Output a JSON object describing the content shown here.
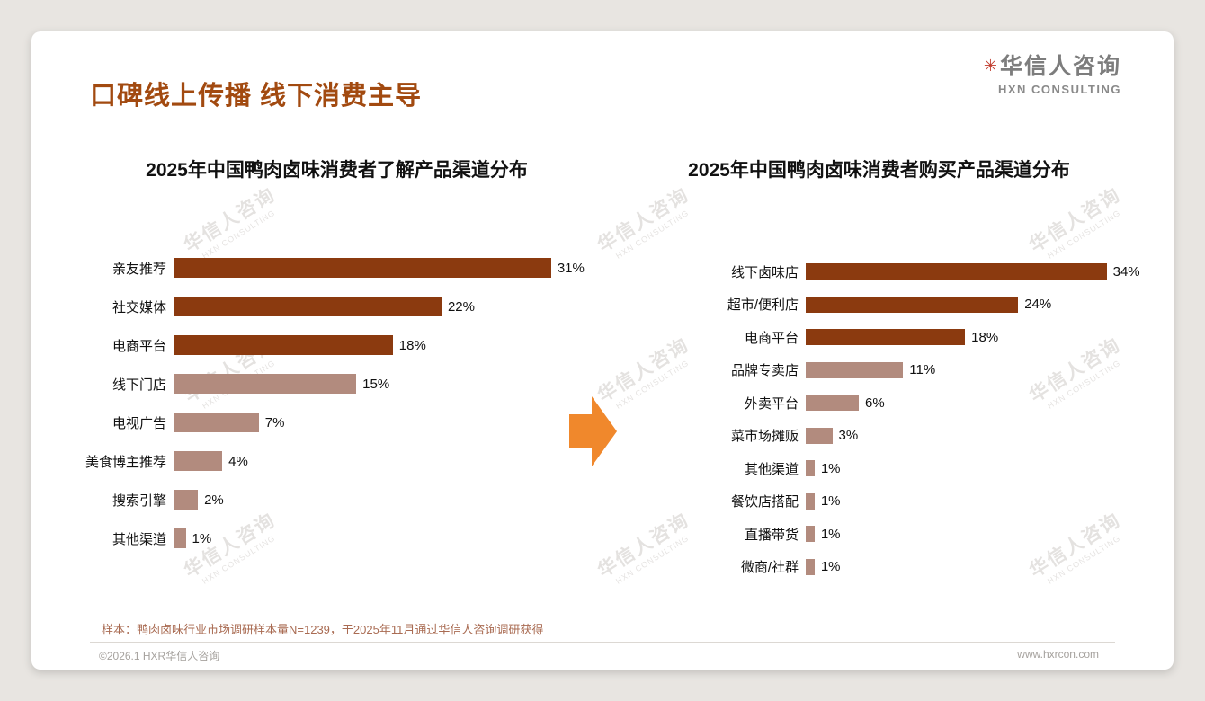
{
  "header": {
    "title": "口碑线上传播 线下消费主导",
    "logo_cn": "华信人咨询",
    "logo_en": "HXN CONSULTING",
    "logo_mark": "✳"
  },
  "watermark": {
    "line1": "华信人咨询",
    "line2": "HXN CONSULTING"
  },
  "colors": {
    "accent": "#A24A10",
    "dark_bar": "#8B3A0F",
    "light_bar": "#B28B7E",
    "arrow": "#F0882C",
    "footnote_text": "#A96B52"
  },
  "chart_data": [
    {
      "type": "bar",
      "orientation": "horizontal",
      "title": "2025年中国鸭肉卤味消费者了解产品渠道分布",
      "categories": [
        "亲友推荐",
        "社交媒体",
        "电商平台",
        "线下门店",
        "电视广告",
        "美食博主推荐",
        "搜索引擎",
        "其他渠道"
      ],
      "values": [
        31,
        22,
        18,
        15,
        7,
        4,
        2,
        1
      ],
      "unit": "%",
      "highlight_count": 3,
      "xlim": [
        0,
        35
      ],
      "grid": false,
      "legend": "none"
    },
    {
      "type": "bar",
      "orientation": "horizontal",
      "title": "2025年中国鸭肉卤味消费者购买产品渠道分布",
      "categories": [
        "线下卤味店",
        "超市/便利店",
        "电商平台",
        "品牌专卖店",
        "外卖平台",
        "菜市场摊贩",
        "其他渠道",
        "餐饮店搭配",
        "直播带货",
        "微商/社群"
      ],
      "values": [
        34,
        24,
        18,
        11,
        6,
        3,
        1,
        1,
        1,
        1
      ],
      "unit": "%",
      "highlight_count": 3,
      "xlim": [
        0,
        38
      ],
      "grid": false,
      "legend": "none"
    }
  ],
  "footnote": "样本：鸭肉卤味行业市场调研样本量N=1239，于2025年11月通过华信人咨询调研获得",
  "footer": {
    "left": "©2026.1 HXR华信人咨询",
    "right": "www.hxrcon.com"
  }
}
